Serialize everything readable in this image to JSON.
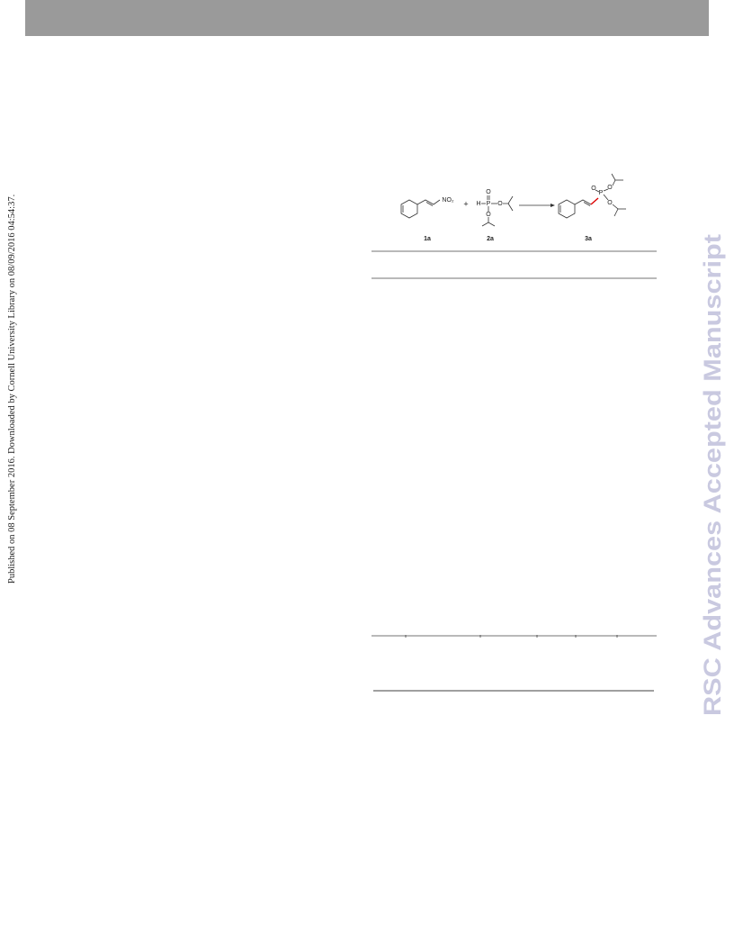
{
  "sidebar": "Published on 08 September 2016. Downloaded by Cornell University Library on 08/09/2016 04:54:37.",
  "watermark": "RSC Advances Accepted Manuscript",
  "scheme": {
    "compounds": [
      "1a",
      "2a",
      "3a"
    ],
    "plus": "+",
    "atoms": [
      "NO₂",
      "O",
      "H",
      "P",
      "O",
      "O",
      "O",
      "P",
      "O",
      "O"
    ]
  }
}
